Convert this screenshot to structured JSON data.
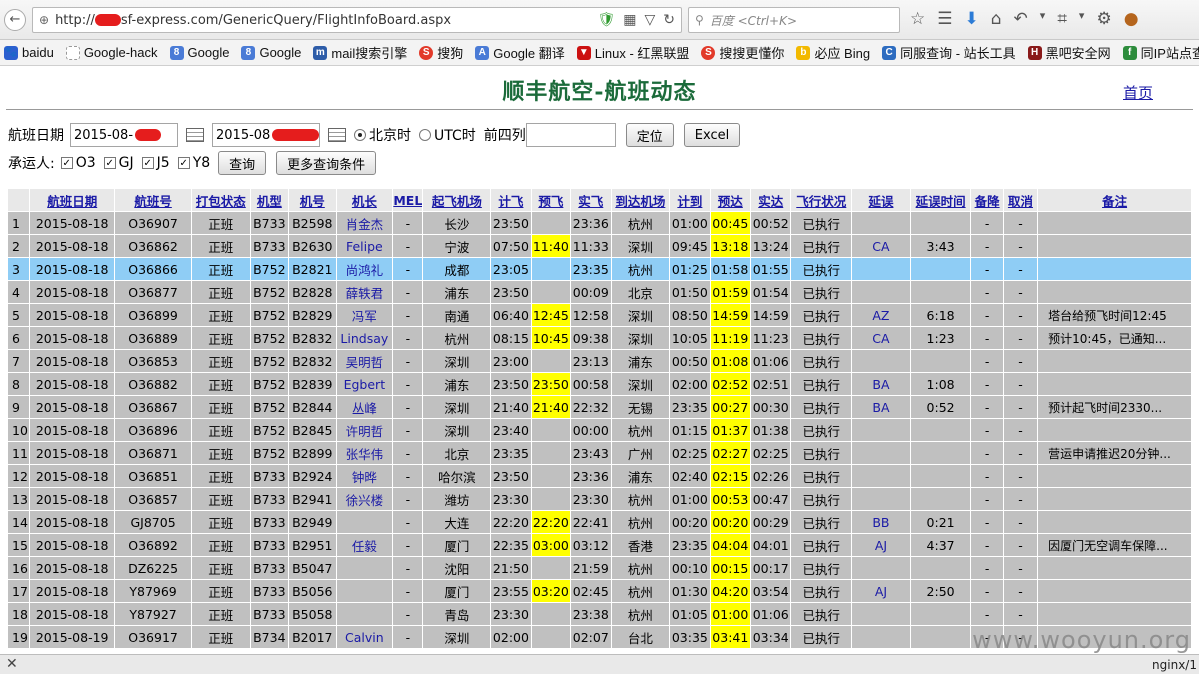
{
  "browser": {
    "url_prefix": "http://",
    "url_rest": "sf-express.com/GenericQuery/FlightInfoBoard.aspx",
    "search_placeholder": "百度 <Ctrl+K>"
  },
  "bookmarks": [
    "baidu",
    "Google-hack",
    "Google",
    "Google",
    "mail搜索引擎",
    "搜狗",
    "Google 翻译",
    "Linux - 红黑联盟",
    "搜搜更懂你",
    "必应 Bing",
    "同服查询 - 站长工具",
    "黑吧安全网",
    "同IP站点查询,IP地址..."
  ],
  "page": {
    "title": "顺丰航空-航班动态",
    "home_link": "首页",
    "date_label": "航班日期",
    "date_from": "2015-08-",
    "date_to": "2015-08",
    "tz_beijing": "北京时",
    "tz_utc": "UTC时",
    "first4_label": "前四列",
    "locate_btn": "定位",
    "excel_btn": "Excel",
    "carrier_label": "承运人:",
    "carriers": [
      "O3",
      "GJ",
      "J5",
      "Y8"
    ],
    "query_btn": "查询",
    "more_btn": "更多查询条件"
  },
  "table": {
    "headers": [
      "",
      "航班日期",
      "航班号",
      "打包状态",
      "机型",
      "机号",
      "机长",
      "MEL",
      "起飞机场",
      "计飞",
      "预飞",
      "实飞",
      "到达机场",
      "计到",
      "预达",
      "实达",
      "飞行状况",
      "延误",
      "延误时间",
      "备降",
      "取消",
      "备注"
    ],
    "rows": [
      [
        "1",
        "2015-08-18",
        "O36907",
        "正班",
        "B733",
        "B2598",
        "肖金杰",
        "-",
        "长沙",
        "23:50",
        "",
        "23:36",
        "杭州",
        "01:00",
        "00:45",
        "00:52",
        "已执行",
        "",
        "",
        "-",
        "-",
        ""
      ],
      [
        "2",
        "2015-08-18",
        "O36862",
        "正班",
        "B733",
        "B2630",
        "Felipe",
        "-",
        "宁波",
        "07:50",
        "11:40",
        "11:33",
        "深圳",
        "09:45",
        "13:18",
        "13:24",
        "已执行",
        "CA",
        "3:43",
        "-",
        "-",
        ""
      ],
      [
        "3",
        "2015-08-18",
        "O36866",
        "正班",
        "B752",
        "B2821",
        "尚鸿礼",
        "-",
        "成都",
        "23:05",
        "",
        "23:35",
        "杭州",
        "01:25",
        "01:58",
        "01:55",
        "已执行",
        "",
        "",
        "-",
        "-",
        ""
      ],
      [
        "4",
        "2015-08-18",
        "O36877",
        "正班",
        "B752",
        "B2828",
        "薛轶君",
        "-",
        "浦东",
        "23:50",
        "",
        "00:09",
        "北京",
        "01:50",
        "01:59",
        "01:54",
        "已执行",
        "",
        "",
        "-",
        "-",
        ""
      ],
      [
        "5",
        "2015-08-18",
        "O36899",
        "正班",
        "B752",
        "B2829",
        "冯军",
        "-",
        "南通",
        "06:40",
        "12:45",
        "12:58",
        "深圳",
        "08:50",
        "14:59",
        "14:59",
        "已执行",
        "AZ",
        "6:18",
        "-",
        "-",
        "塔台给预飞时间12:45"
      ],
      [
        "6",
        "2015-08-18",
        "O36889",
        "正班",
        "B752",
        "B2832",
        "Lindsay",
        "-",
        "杭州",
        "08:15",
        "10:45",
        "09:38",
        "深圳",
        "10:05",
        "11:19",
        "11:23",
        "已执行",
        "CA",
        "1:23",
        "-",
        "-",
        "预计10:45，已通知..."
      ],
      [
        "7",
        "2015-08-18",
        "O36853",
        "正班",
        "B752",
        "B2832",
        "吴明哲",
        "-",
        "深圳",
        "23:00",
        "",
        "23:13",
        "浦东",
        "00:50",
        "01:08",
        "01:06",
        "已执行",
        "",
        "",
        "-",
        "-",
        ""
      ],
      [
        "8",
        "2015-08-18",
        "O36882",
        "正班",
        "B752",
        "B2839",
        "Egbert",
        "-",
        "浦东",
        "23:50",
        "23:50",
        "00:58",
        "深圳",
        "02:00",
        "02:52",
        "02:51",
        "已执行",
        "BA",
        "1:08",
        "-",
        "-",
        ""
      ],
      [
        "9",
        "2015-08-18",
        "O36867",
        "正班",
        "B752",
        "B2844",
        "丛峰",
        "-",
        "深圳",
        "21:40",
        "21:40",
        "22:32",
        "无锡",
        "23:35",
        "00:27",
        "00:30",
        "已执行",
        "BA",
        "0:52",
        "-",
        "-",
        "预计起飞时间2330..."
      ],
      [
        "10",
        "2015-08-18",
        "O36896",
        "正班",
        "B752",
        "B2845",
        "许明哲",
        "-",
        "深圳",
        "23:40",
        "",
        "00:00",
        "杭州",
        "01:15",
        "01:37",
        "01:38",
        "已执行",
        "",
        "",
        "-",
        "-",
        ""
      ],
      [
        "11",
        "2015-08-18",
        "O36871",
        "正班",
        "B752",
        "B2899",
        "张华伟",
        "-",
        "北京",
        "23:35",
        "",
        "23:43",
        "广州",
        "02:25",
        "02:27",
        "02:25",
        "已执行",
        "",
        "",
        "-",
        "-",
        "营运申请推迟20分钟..."
      ],
      [
        "12",
        "2015-08-18",
        "O36851",
        "正班",
        "B733",
        "B2924",
        "钟晔",
        "-",
        "哈尔滨",
        "23:50",
        "",
        "23:36",
        "浦东",
        "02:40",
        "02:15",
        "02:26",
        "已执行",
        "",
        "",
        "-",
        "-",
        ""
      ],
      [
        "13",
        "2015-08-18",
        "O36857",
        "正班",
        "B733",
        "B2941",
        "徐兴楼",
        "-",
        "潍坊",
        "23:30",
        "",
        "23:30",
        "杭州",
        "01:00",
        "00:53",
        "00:47",
        "已执行",
        "",
        "",
        "-",
        "-",
        ""
      ],
      [
        "14",
        "2015-08-18",
        "GJ8705",
        "正班",
        "B733",
        "B2949",
        "",
        "-",
        "大连",
        "22:20",
        "22:20",
        "22:41",
        "杭州",
        "00:20",
        "00:20",
        "00:29",
        "已执行",
        "BB",
        "0:21",
        "-",
        "-",
        ""
      ],
      [
        "15",
        "2015-08-18",
        "O36892",
        "正班",
        "B733",
        "B2951",
        "任毅",
        "-",
        "厦门",
        "22:35",
        "03:00",
        "03:12",
        "香港",
        "23:35",
        "04:04",
        "04:01",
        "已执行",
        "AJ",
        "4:37",
        "-",
        "-",
        "因厦门无空调车保障..."
      ],
      [
        "16",
        "2015-08-18",
        "DZ6225",
        "正班",
        "B733",
        "B5047",
        "",
        "-",
        "沈阳",
        "21:50",
        "",
        "21:59",
        "杭州",
        "00:10",
        "00:15",
        "00:17",
        "已执行",
        "",
        "",
        "-",
        "-",
        ""
      ],
      [
        "17",
        "2015-08-18",
        "Y87969",
        "正班",
        "B733",
        "B5056",
        "",
        "-",
        "厦门",
        "23:55",
        "03:20",
        "02:45",
        "杭州",
        "01:30",
        "04:20",
        "03:54",
        "已执行",
        "AJ",
        "2:50",
        "-",
        "-",
        ""
      ],
      [
        "18",
        "2015-08-18",
        "Y87927",
        "正班",
        "B733",
        "B5058",
        "",
        "-",
        "青岛",
        "23:30",
        "",
        "23:38",
        "杭州",
        "01:05",
        "01:00",
        "01:06",
        "已执行",
        "",
        "",
        "-",
        "-",
        ""
      ],
      [
        "19",
        "2015-08-19",
        "O36917",
        "正班",
        "B734",
        "B2017",
        "Calvin",
        "-",
        "深圳",
        "02:00",
        "",
        "02:07",
        "台北",
        "03:35",
        "03:41",
        "03:34",
        "已执行",
        "",
        "",
        "-",
        "-",
        ""
      ]
    ],
    "selected_row": 2,
    "highlight_cols": [
      10,
      14
    ],
    "link_cols": [
      6,
      17
    ]
  },
  "status": {
    "server": "nginx/1",
    "watermark": "www.wooyun.org"
  }
}
